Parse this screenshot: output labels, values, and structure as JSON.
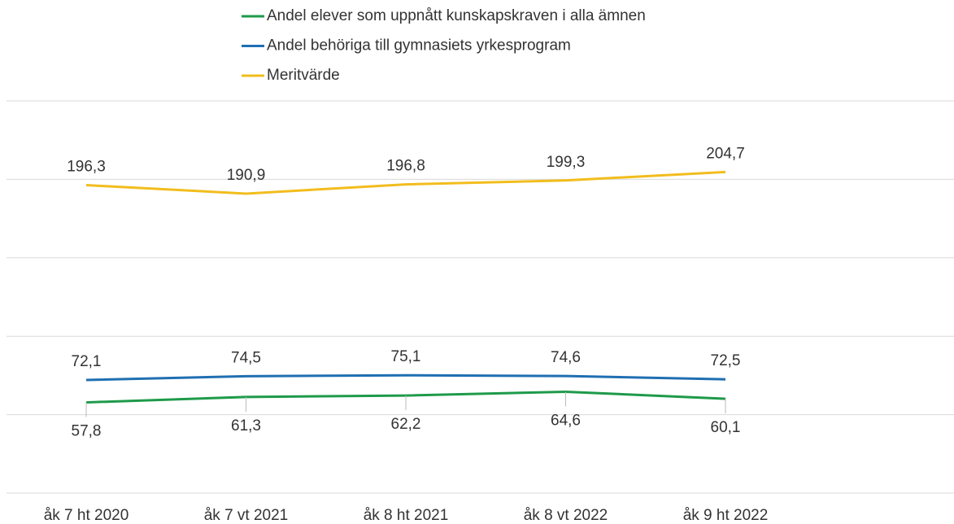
{
  "chart_data": {
    "type": "line",
    "categories": [
      "åk 7 ht 2020",
      "åk 7 vt 2021",
      "åk 8 ht 2021",
      "åk 8 vt 2022",
      "åk 9 ht 2022"
    ],
    "series": [
      {
        "name": "Andel elever som uppnått kunskapskraven i alla ämnen",
        "color": "#1e9a4a",
        "values": [
          57.8,
          61.3,
          62.2,
          64.6,
          60.1
        ],
        "value_labels": [
          "57,8",
          "61,3",
          "62,2",
          "64,6",
          "60,1"
        ]
      },
      {
        "name": "Andel behöriga till gymnasiets yrkesprogram",
        "color": "#1f6fb2",
        "values": [
          72.1,
          74.5,
          75.1,
          74.6,
          72.5
        ],
        "value_labels": [
          "72,1",
          "74,5",
          "75,1",
          "74,6",
          "72,5"
        ]
      },
      {
        "name": "Meritvärde",
        "color": "#f2bd1d",
        "values": [
          196.3,
          190.9,
          196.8,
          199.3,
          204.7
        ],
        "value_labels": [
          "196,3",
          "190,9",
          "196,8",
          "199,3",
          "204,7"
        ]
      }
    ],
    "ylim": [
      0,
      250
    ],
    "yticks": [
      0,
      50,
      100,
      150,
      200,
      250
    ],
    "grid": true
  }
}
